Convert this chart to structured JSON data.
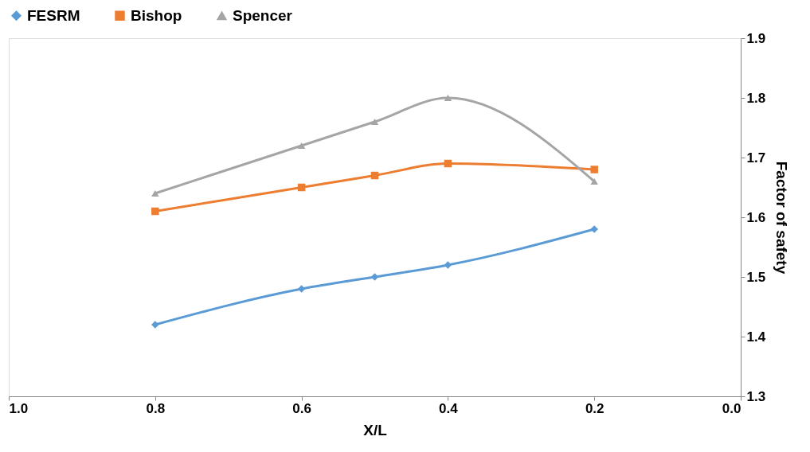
{
  "chart_data": {
    "type": "line",
    "xlabel": "X/L",
    "ylabel": "Factor of safety",
    "x": [
      0.8,
      0.6,
      0.5,
      0.4,
      0.2
    ],
    "series": [
      {
        "name": "FESRM",
        "color": "#5b9bd5",
        "marker": "diamond",
        "values": [
          1.42,
          1.48,
          1.5,
          1.52,
          1.58
        ]
      },
      {
        "name": "Bishop",
        "color": "#ed7d31",
        "marker": "square",
        "values": [
          1.61,
          1.65,
          1.67,
          1.69,
          1.68
        ]
      },
      {
        "name": "Spencer",
        "color": "#a5a5a5",
        "marker": "triangle",
        "values": [
          1.64,
          1.72,
          1.76,
          1.8,
          1.66
        ]
      }
    ],
    "xlim": [
      1.0,
      0.0
    ],
    "xticks": [
      {
        "value": 1.0,
        "label": "1.0"
      },
      {
        "value": 0.8,
        "label": "0.8"
      },
      {
        "value": 0.6,
        "label": "0.6"
      },
      {
        "value": 0.4,
        "label": "0.4"
      },
      {
        "value": 0.2,
        "label": "0.2"
      },
      {
        "value": 0.0,
        "label": "0.0"
      }
    ],
    "ylim": [
      1.3,
      1.9
    ],
    "yticks": [
      1.3,
      1.4,
      1.5,
      1.6,
      1.7,
      1.8,
      1.9
    ],
    "grid": false,
    "legend": "top",
    "line_style": "solid"
  }
}
